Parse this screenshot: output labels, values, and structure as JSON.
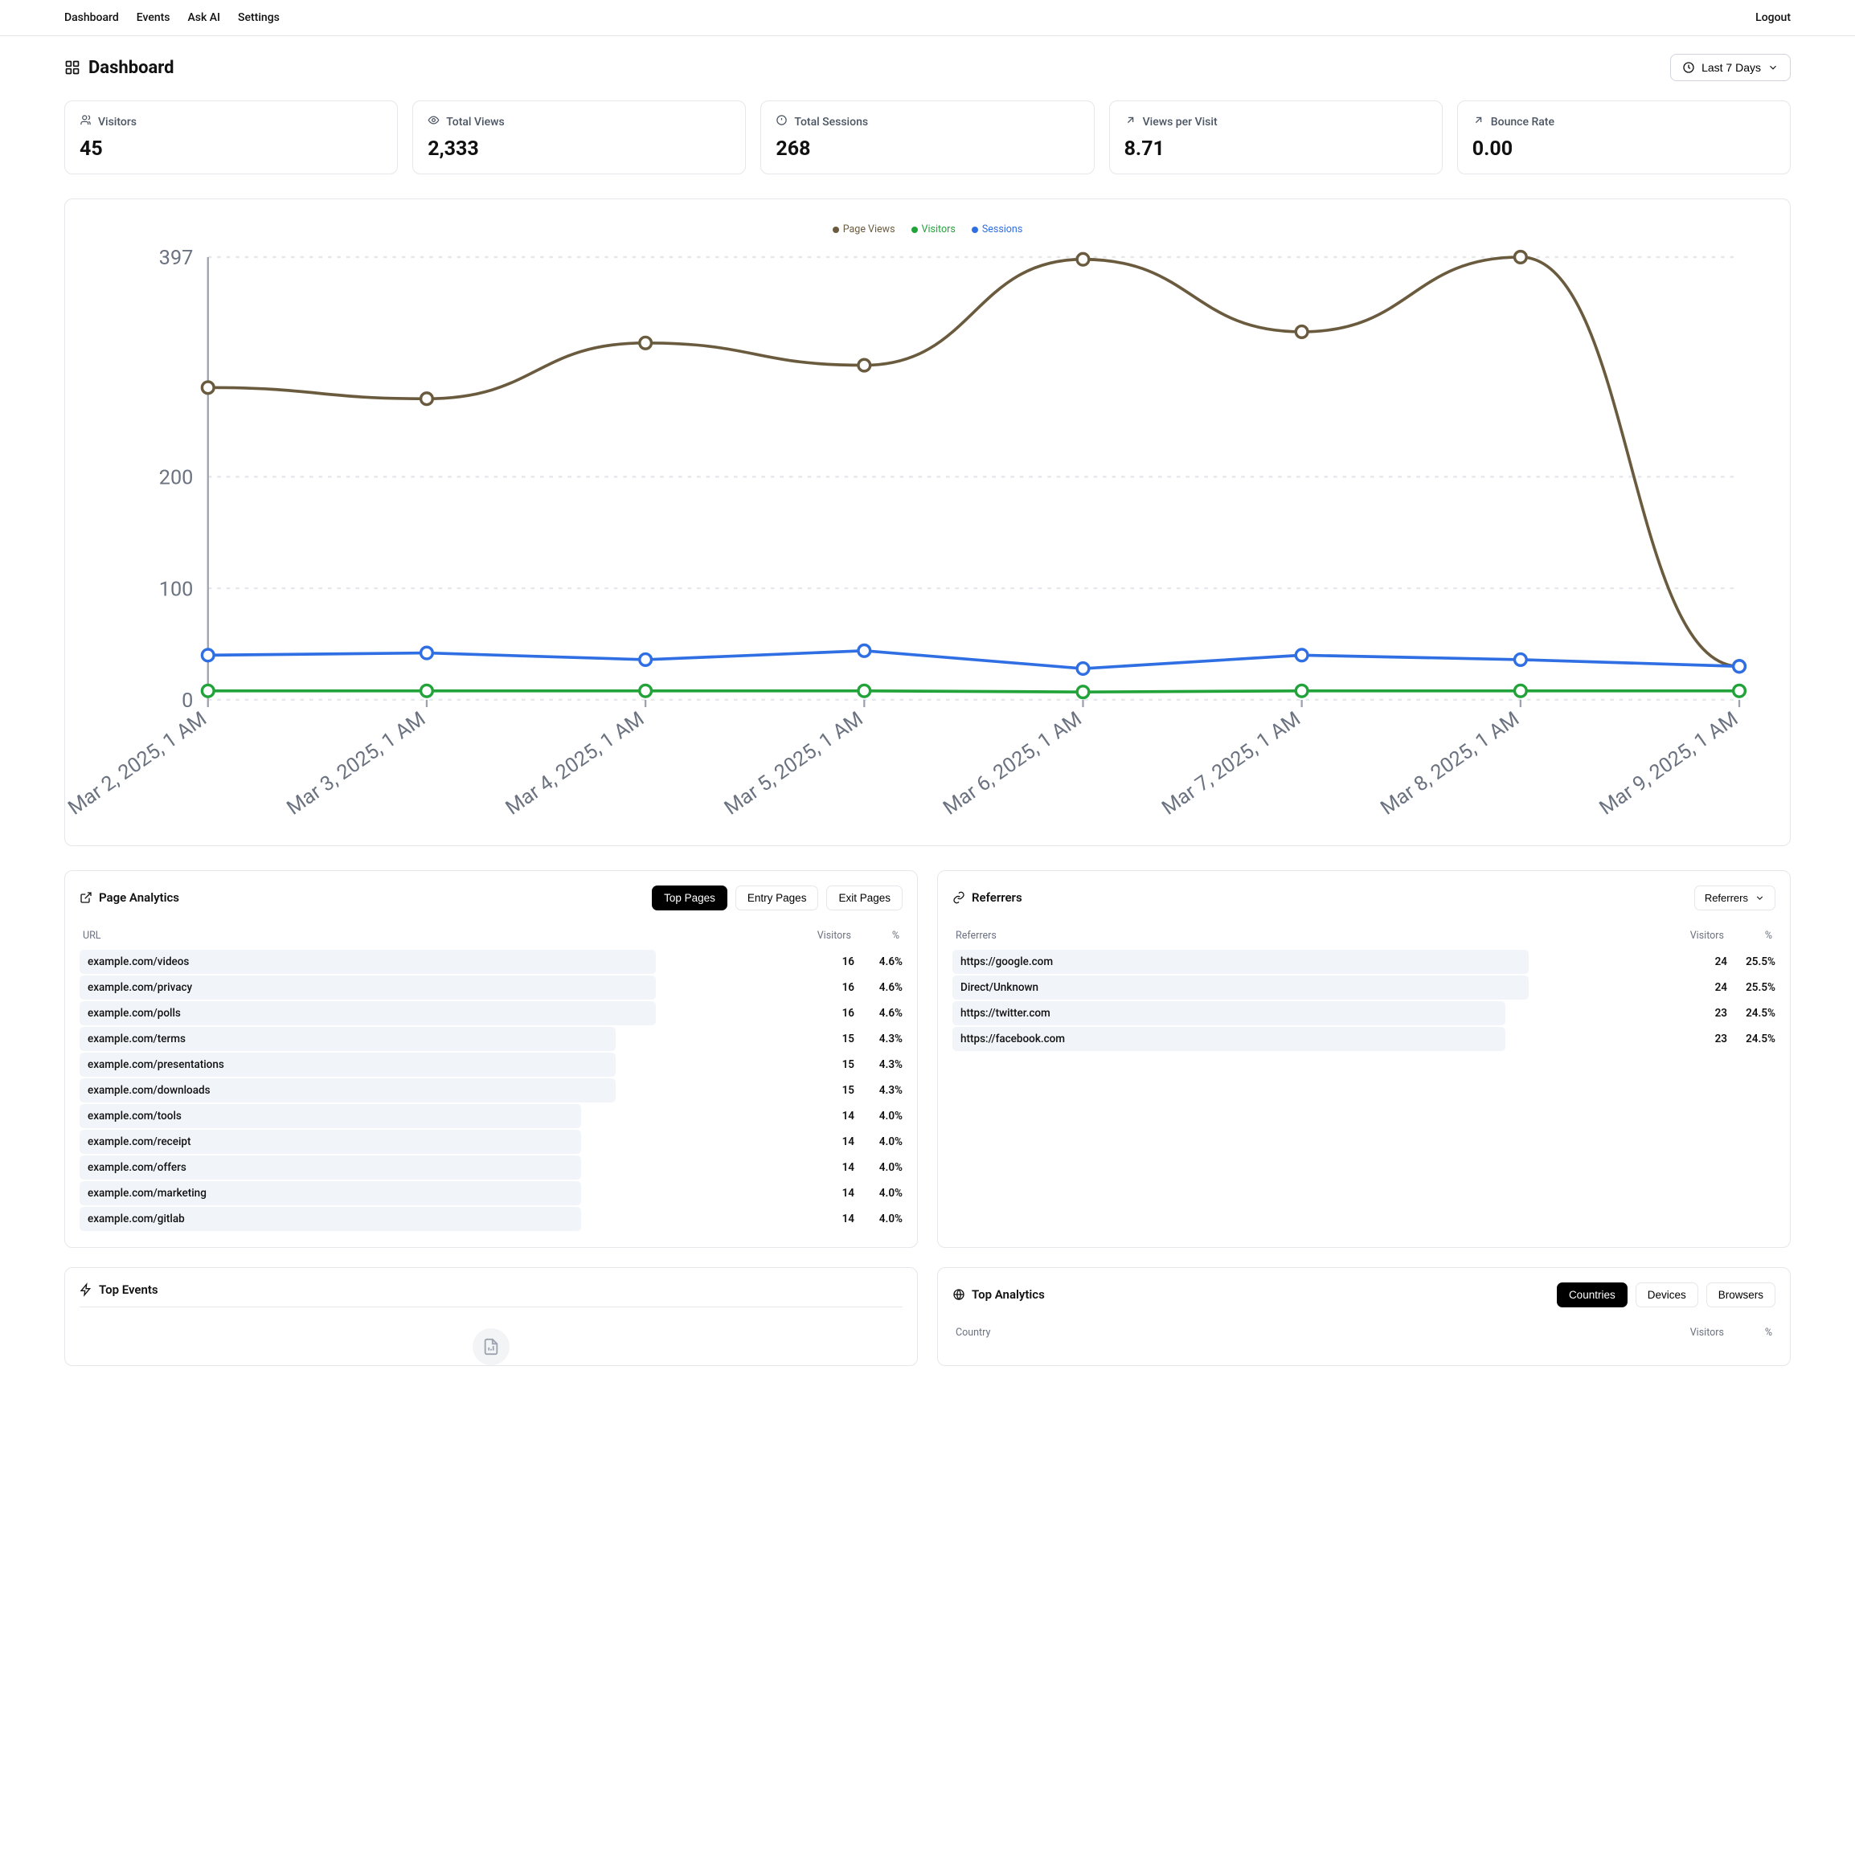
{
  "nav": {
    "links": [
      "Dashboard",
      "Events",
      "Ask AI",
      "Settings"
    ],
    "logout": "Logout"
  },
  "page": {
    "title": "Dashboard",
    "date_range_label": "Last 7 Days"
  },
  "stats": [
    {
      "label": "Visitors",
      "value": "45",
      "icon": "users"
    },
    {
      "label": "Total Views",
      "value": "2,333",
      "icon": "eye"
    },
    {
      "label": "Total Sessions",
      "value": "268",
      "icon": "clock-alert"
    },
    {
      "label": "Views per Visit",
      "value": "8.71",
      "icon": "arrow-up-right"
    },
    {
      "label": "Bounce Rate",
      "value": "0.00",
      "icon": "arrow-up-right"
    }
  ],
  "chart": {
    "legend": [
      {
        "name": "Page Views",
        "color": "#6b5b3e"
      },
      {
        "name": "Visitors",
        "color": "#22a33a"
      },
      {
        "name": "Sessions",
        "color": "#2f6fe3"
      }
    ],
    "y_ticks": [
      0,
      100,
      200,
      397
    ],
    "y_max": 397,
    "x_labels": [
      "Mar 2, 2025, 1 AM",
      "Mar 3, 2025, 1 AM",
      "Mar 4, 2025, 1 AM",
      "Mar 5, 2025, 1 AM",
      "Mar 6, 2025, 1 AM",
      "Mar 7, 2025, 1 AM",
      "Mar 8, 2025, 1 AM",
      "Mar 9, 2025, 1 AM"
    ],
    "series": {
      "page_views": [
        280,
        270,
        320,
        300,
        395,
        330,
        397,
        30
      ],
      "visitors": [
        8,
        8,
        8,
        8,
        7,
        8,
        8,
        8
      ],
      "sessions": [
        40,
        42,
        36,
        44,
        28,
        40,
        36,
        30
      ]
    },
    "grid_color": "#e5e7eb",
    "axis_color": "#9ca3af",
    "marker_radius": 3.2,
    "line_width": 1.6
  },
  "page_analytics": {
    "title": "Page Analytics",
    "tabs": [
      "Top Pages",
      "Entry Pages",
      "Exit Pages"
    ],
    "active_tab": 0,
    "headers": {
      "main": "URL",
      "v": "Visitors",
      "p": "%"
    },
    "bar_color": "#f1f5f9",
    "rows": [
      {
        "label": "example.com/videos",
        "visitors": 16,
        "pct": "4.6%",
        "bar": 100
      },
      {
        "label": "example.com/privacy",
        "visitors": 16,
        "pct": "4.6%",
        "bar": 100
      },
      {
        "label": "example.com/polls",
        "visitors": 16,
        "pct": "4.6%",
        "bar": 100
      },
      {
        "label": "example.com/terms",
        "visitors": 15,
        "pct": "4.3%",
        "bar": 93
      },
      {
        "label": "example.com/presentations",
        "visitors": 15,
        "pct": "4.3%",
        "bar": 93
      },
      {
        "label": "example.com/downloads",
        "visitors": 15,
        "pct": "4.3%",
        "bar": 93
      },
      {
        "label": "example.com/tools",
        "visitors": 14,
        "pct": "4.0%",
        "bar": 87
      },
      {
        "label": "example.com/receipt",
        "visitors": 14,
        "pct": "4.0%",
        "bar": 87
      },
      {
        "label": "example.com/offers",
        "visitors": 14,
        "pct": "4.0%",
        "bar": 87
      },
      {
        "label": "example.com/marketing",
        "visitors": 14,
        "pct": "4.0%",
        "bar": 87
      },
      {
        "label": "example.com/gitlab",
        "visitors": 14,
        "pct": "4.0%",
        "bar": 87
      }
    ]
  },
  "referrers": {
    "title": "Referrers",
    "selector_label": "Referrers",
    "headers": {
      "main": "Referrers",
      "v": "Visitors",
      "p": "%"
    },
    "bar_color": "#f1f5f9",
    "rows": [
      {
        "label": "https://google.com",
        "visitors": 24,
        "pct": "25.5%",
        "bar": 100
      },
      {
        "label": "Direct/Unknown",
        "visitors": 24,
        "pct": "25.5%",
        "bar": 100
      },
      {
        "label": "https://twitter.com",
        "visitors": 23,
        "pct": "24.5%",
        "bar": 96
      },
      {
        "label": "https://facebook.com",
        "visitors": 23,
        "pct": "24.5%",
        "bar": 96
      }
    ]
  },
  "top_events": {
    "title": "Top Events"
  },
  "top_analytics": {
    "title": "Top Analytics",
    "tabs": [
      "Countries",
      "Devices",
      "Browsers"
    ],
    "active_tab": 0,
    "headers": {
      "main": "Country",
      "v": "Visitors",
      "p": "%"
    }
  }
}
